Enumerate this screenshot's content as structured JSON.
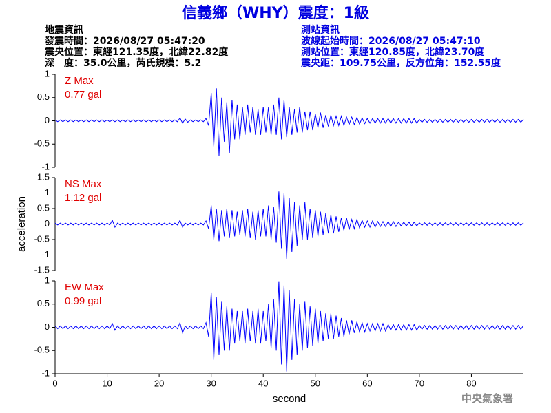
{
  "header": {
    "title": "信義鄉（WHY）震度：1級",
    "left": [
      "地震資訊",
      "發震時間：2026/08/27 05:47:20",
      "震央位置：東經121.35度，北緯22.82度",
      "深　度：35.0公里，芮氏規模：5.2"
    ],
    "right": [
      "測站資訊",
      "波線起始時間：2026/08/27 05:47:10",
      "測站位置：東經120.85度，北緯23.70度",
      "震央距：109.75公里，反方位角：152.55度"
    ],
    "footer": "中央氣象署"
  },
  "chart_data": [
    {
      "type": "line",
      "annotations": [
        "Z Max",
        "0.77 gal"
      ],
      "xlim": [
        0,
        90
      ],
      "ylim": [
        -1,
        1
      ],
      "yticks": [
        -1,
        -0.5,
        0,
        0.5,
        1
      ],
      "x": [
        0,
        0.5,
        1,
        1.5,
        2,
        2.5,
        3,
        3.5,
        4,
        4.5,
        5,
        5.5,
        6,
        6.5,
        7,
        7.5,
        8,
        8.5,
        9,
        9.5,
        10,
        10.5,
        11,
        11.5,
        12,
        12.5,
        13,
        13.5,
        14,
        14.5,
        15,
        15.5,
        16,
        16.5,
        17,
        17.5,
        18,
        18.5,
        19,
        19.5,
        20,
        20.5,
        21,
        21.5,
        22,
        22.5,
        23,
        23.5,
        24,
        24.5,
        25,
        25.5,
        26,
        26.5,
        27,
        27.5,
        28,
        28.5,
        29,
        29.5,
        30,
        30.5,
        31,
        31.5,
        32,
        32.5,
        33,
        33.5,
        34,
        34.5,
        35,
        35.5,
        36,
        36.5,
        37,
        37.5,
        38,
        38.5,
        39,
        39.5,
        40,
        40.5,
        41,
        41.5,
        42,
        42.5,
        43,
        43.5,
        44,
        44.5,
        45,
        45.5,
        46,
        46.5,
        47,
        47.5,
        48,
        48.5,
        49,
        49.5,
        50,
        50.5,
        51,
        51.5,
        52,
        52.5,
        53,
        53.5,
        54,
        54.5,
        55,
        55.5,
        56,
        56.5,
        57,
        57.5,
        58,
        58.5,
        59,
        59.5,
        60,
        60.5,
        61,
        61.5,
        62,
        62.5,
        63,
        63.5,
        64,
        64.5,
        65,
        65.5,
        66,
        66.5,
        67,
        67.5,
        68,
        68.5,
        69,
        69.5,
        70,
        70.5,
        71,
        71.5,
        72,
        72.5,
        73,
        73.5,
        74,
        74.5,
        75,
        75.5,
        76,
        76.5,
        77,
        77.5,
        78,
        78.5,
        79,
        79.5,
        80,
        80.5,
        81,
        81.5,
        82,
        82.5,
        83,
        83.5,
        84,
        84.5,
        85,
        85.5,
        86,
        86.5,
        87,
        87.5,
        88,
        88.5,
        89,
        89.5,
        90
      ],
      "series": [
        {
          "color": "#0000ff",
          "values": [
            0.02,
            -0.02,
            0.02,
            -0.02,
            0.02,
            -0.02,
            0.02,
            -0.02,
            0.02,
            -0.02,
            0.02,
            -0.02,
            0.02,
            -0.02,
            0.02,
            -0.02,
            0.02,
            -0.02,
            0.02,
            -0.02,
            0.02,
            -0.02,
            0.02,
            -0.02,
            0.02,
            -0.02,
            0.02,
            -0.02,
            0.02,
            -0.02,
            0.02,
            -0.02,
            0.02,
            -0.02,
            0.02,
            -0.02,
            0.02,
            -0.02,
            0.02,
            -0.02,
            0.02,
            -0.02,
            0.02,
            -0.02,
            0.02,
            -0.02,
            0.02,
            -0.02,
            0.06,
            -0.05,
            0.04,
            -0.03,
            0.02,
            -0.02,
            0.02,
            -0.02,
            0.02,
            -0.02,
            0.05,
            -0.1,
            0.6,
            -0.55,
            0.7,
            -0.75,
            0.5,
            -0.45,
            0.4,
            -0.7,
            0.45,
            -0.4,
            0.35,
            -0.4,
            0.3,
            -0.3,
            0.35,
            -0.25,
            0.3,
            -0.3,
            0.25,
            -0.3,
            0.3,
            -0.25,
            0.3,
            -0.3,
            0.35,
            -0.3,
            0.5,
            -0.4,
            0.45,
            -0.35,
            0.3,
            -0.3,
            0.25,
            -0.25,
            0.3,
            -0.25,
            0.2,
            -0.2,
            0.2,
            -0.2,
            0.15,
            -0.15,
            0.18,
            -0.15,
            0.12,
            -0.12,
            0.12,
            -0.1,
            0.1,
            -0.1,
            0.1,
            -0.1,
            0.08,
            -0.08,
            0.08,
            -0.08,
            0.07,
            -0.07,
            0.06,
            -0.06,
            0.05,
            -0.05,
            0.05,
            -0.05,
            0.05,
            -0.05,
            0.05,
            -0.05,
            0.05,
            -0.05,
            0.05,
            -0.05,
            0.05,
            -0.05,
            0.05,
            -0.05,
            0.05,
            -0.05,
            0.05,
            -0.05,
            0.03,
            -0.03,
            0.03,
            -0.03,
            0.03,
            -0.03,
            0.03,
            -0.03,
            0.03,
            -0.03,
            0.03,
            -0.03,
            0.03,
            -0.03,
            0.03,
            -0.03,
            0.03,
            -0.03,
            0.03,
            -0.03,
            0.03,
            -0.03,
            0.03,
            -0.03,
            0.03,
            -0.03,
            0.03,
            -0.03,
            0.03,
            -0.03,
            0.03,
            -0.03,
            0.03,
            -0.03,
            0.03,
            -0.03,
            0.03,
            -0.03,
            0.03,
            -0.03,
            0.03
          ]
        }
      ]
    },
    {
      "type": "line",
      "annotations": [
        "NS Max",
        "1.12 gal"
      ],
      "ylabel": "acceleration",
      "xlim": [
        0,
        90
      ],
      "ylim": [
        -1.5,
        1.5
      ],
      "yticks": [
        -1.5,
        -1,
        -0.5,
        0,
        0.5,
        1,
        1.5
      ],
      "x": [
        0,
        0.5,
        1,
        1.5,
        2,
        2.5,
        3,
        3.5,
        4,
        4.5,
        5,
        5.5,
        6,
        6.5,
        7,
        7.5,
        8,
        8.5,
        9,
        9.5,
        10,
        10.5,
        11,
        11.5,
        12,
        12.5,
        13,
        13.5,
        14,
        14.5,
        15,
        15.5,
        16,
        16.5,
        17,
        17.5,
        18,
        18.5,
        19,
        19.5,
        20,
        20.5,
        21,
        21.5,
        22,
        22.5,
        23,
        23.5,
        24,
        24.5,
        25,
        25.5,
        26,
        26.5,
        27,
        27.5,
        28,
        28.5,
        29,
        29.5,
        30,
        30.5,
        31,
        31.5,
        32,
        32.5,
        33,
        33.5,
        34,
        34.5,
        35,
        35.5,
        36,
        36.5,
        37,
        37.5,
        38,
        38.5,
        39,
        39.5,
        40,
        40.5,
        41,
        41.5,
        42,
        42.5,
        43,
        43.5,
        44,
        44.5,
        45,
        45.5,
        46,
        46.5,
        47,
        47.5,
        48,
        48.5,
        49,
        49.5,
        50,
        50.5,
        51,
        51.5,
        52,
        52.5,
        53,
        53.5,
        54,
        54.5,
        55,
        55.5,
        56,
        56.5,
        57,
        57.5,
        58,
        58.5,
        59,
        59.5,
        60,
        60.5,
        61,
        61.5,
        62,
        62.5,
        63,
        63.5,
        64,
        64.5,
        65,
        65.5,
        66,
        66.5,
        67,
        67.5,
        68,
        68.5,
        69,
        69.5,
        70,
        70.5,
        71,
        71.5,
        72,
        72.5,
        73,
        73.5,
        74,
        74.5,
        75,
        75.5,
        76,
        76.5,
        77,
        77.5,
        78,
        78.5,
        79,
        79.5,
        80,
        80.5,
        81,
        81.5,
        82,
        82.5,
        83,
        83.5,
        84,
        84.5,
        85,
        85.5,
        86,
        86.5,
        87,
        87.5,
        88,
        88.5,
        89,
        89.5,
        90
      ],
      "series": [
        {
          "color": "#0000ff",
          "values": [
            0.03,
            -0.03,
            0.03,
            -0.03,
            0.03,
            -0.03,
            0.03,
            -0.03,
            0.03,
            -0.03,
            0.03,
            -0.03,
            0.03,
            -0.03,
            0.03,
            -0.03,
            0.03,
            -0.03,
            0.03,
            -0.03,
            0.03,
            -0.03,
            0.12,
            -0.1,
            0.03,
            -0.03,
            0.03,
            -0.03,
            0.03,
            -0.03,
            0.03,
            -0.03,
            0.03,
            -0.03,
            0.03,
            -0.03,
            0.03,
            -0.03,
            0.03,
            -0.03,
            0.03,
            -0.03,
            0.03,
            -0.03,
            0.03,
            -0.03,
            0.03,
            -0.03,
            0.12,
            -0.1,
            0.03,
            -0.03,
            0.03,
            -0.03,
            0.03,
            -0.03,
            0.03,
            -0.03,
            0.1,
            -0.15,
            0.6,
            -0.5,
            0.5,
            -0.55,
            0.45,
            -0.4,
            0.5,
            -0.45,
            0.45,
            -0.4,
            0.4,
            -0.35,
            0.45,
            -0.4,
            0.5,
            -0.45,
            0.4,
            -0.5,
            0.45,
            -0.4,
            0.5,
            -0.4,
            0.6,
            -0.5,
            0.55,
            -0.6,
            1.05,
            -0.8,
            1.0,
            -1.12,
            0.85,
            -0.9,
            0.7,
            -0.7,
            0.6,
            -0.5,
            0.7,
            -0.5,
            0.5,
            -0.45,
            0.45,
            -0.4,
            0.4,
            -0.35,
            0.35,
            -0.3,
            0.3,
            -0.3,
            0.25,
            -0.25,
            0.2,
            -0.2,
            0.2,
            -0.18,
            0.15,
            -0.15,
            0.15,
            -0.12,
            0.12,
            -0.1,
            0.1,
            -0.1,
            0.1,
            -0.1,
            0.08,
            -0.08,
            0.08,
            -0.08,
            0.08,
            -0.08,
            0.08,
            -0.08,
            0.06,
            -0.06,
            0.06,
            -0.06,
            0.06,
            -0.06,
            0.06,
            -0.06,
            0.04,
            -0.04,
            0.04,
            -0.04,
            0.04,
            -0.04,
            0.04,
            -0.04,
            0.04,
            -0.04,
            0.04,
            -0.04,
            0.04,
            -0.04,
            0.04,
            -0.04,
            0.04,
            -0.04,
            0.04,
            -0.04,
            0.04,
            -0.04,
            0.04,
            -0.04,
            0.04,
            -0.04,
            0.04,
            -0.04,
            0.04,
            -0.04,
            0.04,
            -0.04,
            0.04,
            -0.04,
            0.04,
            -0.04,
            0.04,
            -0.04,
            0.04,
            -0.04,
            0.04
          ]
        }
      ]
    },
    {
      "type": "line",
      "annotations": [
        "EW Max",
        "0.99 gal"
      ],
      "xlabel": "second",
      "xlim": [
        0,
        90
      ],
      "ylim": [
        -1,
        1
      ],
      "yticks": [
        -1,
        -0.5,
        0,
        0.5,
        1
      ],
      "xticks": [
        0,
        10,
        20,
        30,
        40,
        50,
        60,
        70,
        80
      ],
      "x": [
        0,
        0.5,
        1,
        1.5,
        2,
        2.5,
        3,
        3.5,
        4,
        4.5,
        5,
        5.5,
        6,
        6.5,
        7,
        7.5,
        8,
        8.5,
        9,
        9.5,
        10,
        10.5,
        11,
        11.5,
        12,
        12.5,
        13,
        13.5,
        14,
        14.5,
        15,
        15.5,
        16,
        16.5,
        17,
        17.5,
        18,
        18.5,
        19,
        19.5,
        20,
        20.5,
        21,
        21.5,
        22,
        22.5,
        23,
        23.5,
        24,
        24.5,
        25,
        25.5,
        26,
        26.5,
        27,
        27.5,
        28,
        28.5,
        29,
        29.5,
        30,
        30.5,
        31,
        31.5,
        32,
        32.5,
        33,
        33.5,
        34,
        34.5,
        35,
        35.5,
        36,
        36.5,
        37,
        37.5,
        38,
        38.5,
        39,
        39.5,
        40,
        40.5,
        41,
        41.5,
        42,
        42.5,
        43,
        43.5,
        44,
        44.5,
        45,
        45.5,
        46,
        46.5,
        47,
        47.5,
        48,
        48.5,
        49,
        49.5,
        50,
        50.5,
        51,
        51.5,
        52,
        52.5,
        53,
        53.5,
        54,
        54.5,
        55,
        55.5,
        56,
        56.5,
        57,
        57.5,
        58,
        58.5,
        59,
        59.5,
        60,
        60.5,
        61,
        61.5,
        62,
        62.5,
        63,
        63.5,
        64,
        64.5,
        65,
        65.5,
        66,
        66.5,
        67,
        67.5,
        68,
        68.5,
        69,
        69.5,
        70,
        70.5,
        71,
        71.5,
        72,
        72.5,
        73,
        73.5,
        74,
        74.5,
        75,
        75.5,
        76,
        76.5,
        77,
        77.5,
        78,
        78.5,
        79,
        79.5,
        80,
        80.5,
        81,
        81.5,
        82,
        82.5,
        83,
        83.5,
        84,
        84.5,
        85,
        85.5,
        86,
        86.5,
        87,
        87.5,
        88,
        88.5,
        89,
        89.5,
        90
      ],
      "series": [
        {
          "color": "#0000ff",
          "values": [
            0.03,
            -0.03,
            0.03,
            -0.03,
            0.03,
            -0.03,
            0.03,
            -0.03,
            0.03,
            -0.03,
            0.03,
            -0.03,
            0.03,
            -0.03,
            0.03,
            -0.03,
            0.03,
            -0.03,
            0.03,
            -0.03,
            0.03,
            -0.03,
            0.08,
            -0.06,
            0.03,
            -0.03,
            0.03,
            -0.03,
            0.03,
            -0.03,
            0.03,
            -0.03,
            0.03,
            -0.03,
            0.03,
            -0.03,
            0.03,
            -0.03,
            0.03,
            -0.03,
            0.03,
            -0.03,
            0.03,
            -0.03,
            0.03,
            -0.03,
            0.03,
            -0.03,
            0.1,
            -0.12,
            0.03,
            -0.03,
            0.03,
            -0.03,
            0.03,
            -0.03,
            0.03,
            -0.03,
            0.1,
            -0.2,
            0.75,
            -0.7,
            0.65,
            -0.6,
            0.55,
            -0.5,
            0.45,
            -0.5,
            0.4,
            -0.35,
            0.35,
            -0.3,
            0.35,
            -0.35,
            0.4,
            -0.3,
            0.35,
            -0.35,
            0.4,
            -0.35,
            0.35,
            -0.3,
            0.5,
            -0.45,
            0.6,
            -0.5,
            0.99,
            -0.8,
            0.9,
            -0.95,
            0.8,
            -0.7,
            0.6,
            -0.6,
            0.5,
            -0.5,
            0.55,
            -0.45,
            0.45,
            -0.4,
            0.4,
            -0.35,
            0.35,
            -0.3,
            0.3,
            -0.25,
            0.3,
            -0.25,
            0.25,
            -0.2,
            0.2,
            -0.2,
            0.15,
            -0.15,
            0.15,
            -0.12,
            0.12,
            -0.1,
            0.1,
            -0.1,
            0.08,
            -0.08,
            0.08,
            -0.08,
            0.08,
            -0.08,
            0.08,
            -0.08,
            0.06,
            -0.06,
            0.06,
            -0.06,
            0.06,
            -0.06,
            0.06,
            -0.06,
            0.06,
            -0.06,
            0.06,
            -0.06,
            0.04,
            -0.04,
            0.04,
            -0.04,
            0.04,
            -0.04,
            0.04,
            -0.04,
            0.04,
            -0.04,
            0.04,
            -0.04,
            0.04,
            -0.04,
            0.04,
            -0.04,
            0.04,
            -0.04,
            0.04,
            -0.04,
            0.04,
            -0.04,
            0.04,
            -0.04,
            0.04,
            -0.04,
            0.04,
            -0.04,
            0.04,
            -0.04,
            0.04,
            -0.04,
            0.04,
            -0.04,
            0.04,
            -0.04,
            0.04,
            -0.04,
            0.04,
            -0.04,
            0.04
          ]
        }
      ]
    }
  ]
}
